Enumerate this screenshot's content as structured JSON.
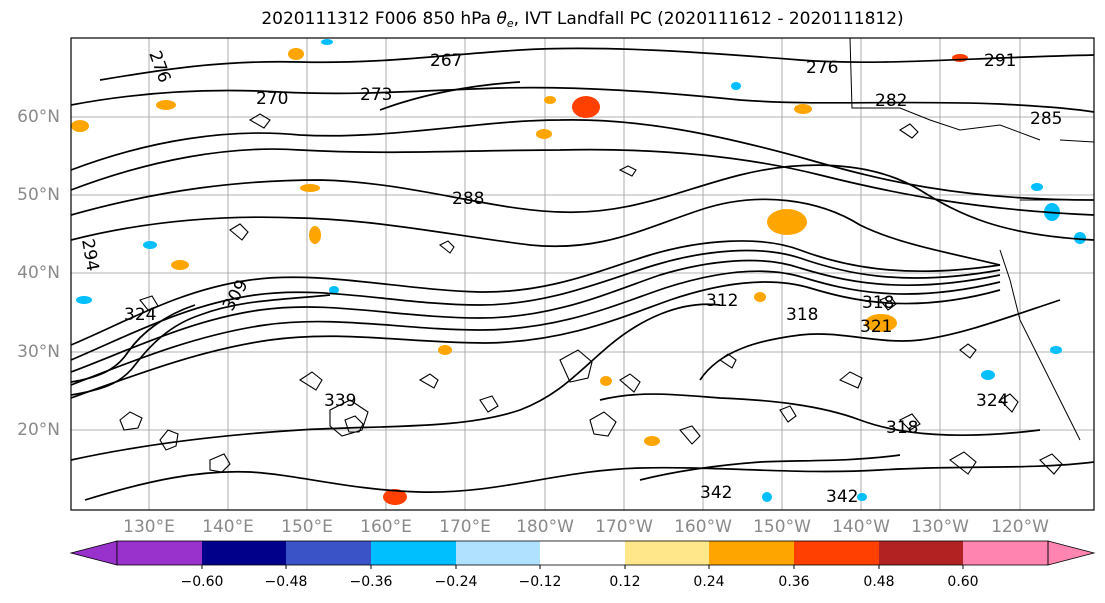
{
  "title": {
    "prefix": "2020111312 F006 850 hPa ",
    "theta_symbol": "θ",
    "theta_subscript": "e",
    "suffix": ", IVT Landfall PC (2020111612 - 2020111812)"
  },
  "map": {
    "region": "North Pacific",
    "lat_labels": [
      "60°N",
      "50°N",
      "40°N",
      "30°N",
      "20°N"
    ],
    "lon_labels": [
      "130°E",
      "140°E",
      "150°E",
      "160°E",
      "170°E",
      "180°W",
      "170°W",
      "160°W",
      "150°W",
      "140°W",
      "130°W",
      "120°W"
    ],
    "contour_field": "850 hPa theta-e",
    "contour_labels": [
      {
        "text": "267"
      },
      {
        "text": "270"
      },
      {
        "text": "273"
      },
      {
        "text": "276"
      },
      {
        "text": "285"
      },
      {
        "text": "288"
      },
      {
        "text": "291"
      },
      {
        "text": "294"
      },
      {
        "text": "309"
      },
      {
        "text": "312"
      },
      {
        "text": "318"
      },
      {
        "text": "324"
      },
      {
        "text": "339"
      },
      {
        "text": "342"
      },
      {
        "text": "282"
      },
      {
        "text": "321"
      }
    ],
    "line_color": "#000000",
    "land_color": "#000000"
  },
  "colorbar": {
    "tick_labels": [
      "−0.60",
      "−0.48",
      "−0.36",
      "−0.24",
      "−0.12",
      "0.12",
      "0.24",
      "0.36",
      "0.48",
      "0.60"
    ],
    "colors": [
      "#9932CC",
      "#00008B",
      "#3A53C6",
      "#00BFFF",
      "#B0E2FF",
      "#FFFFFF",
      "#FFE78A",
      "#FFA500",
      "#FF4000",
      "#B22222",
      "#FF85B0"
    ]
  }
}
